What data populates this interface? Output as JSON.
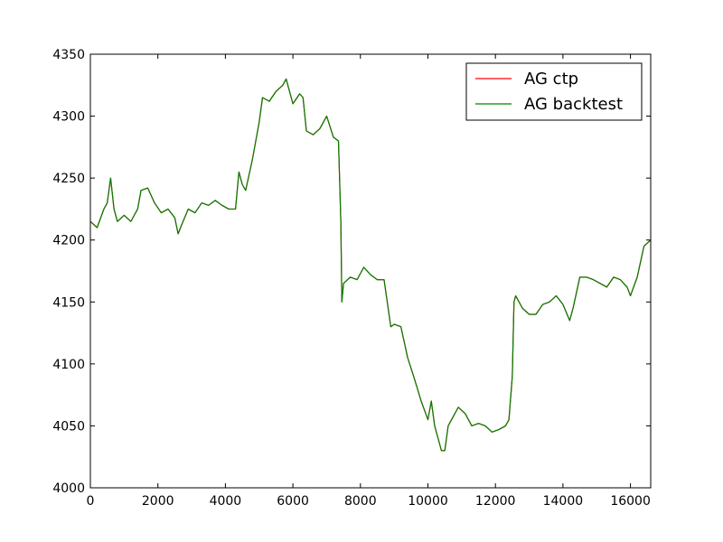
{
  "chart_data": {
    "type": "line",
    "title": "",
    "xlabel": "",
    "ylabel": "",
    "xlim": [
      0,
      16600
    ],
    "ylim": [
      4000,
      4350
    ],
    "xticks": [
      "0",
      "2000",
      "4000",
      "6000",
      "8000",
      "10000",
      "12000",
      "14000",
      "16000"
    ],
    "yticks": [
      "4000",
      "4050",
      "4100",
      "4150",
      "4200",
      "4250",
      "4300",
      "4350"
    ],
    "grid": false,
    "legend_position": "top-right",
    "series": [
      {
        "name": "AG ctp",
        "color": "#ff0000",
        "x": [
          0,
          200,
          400,
          500,
          600,
          700,
          800,
          1000,
          1200,
          1400,
          1500,
          1700,
          1900,
          2100,
          2300,
          2500,
          2600,
          2700,
          2900,
          3100,
          3300,
          3500,
          3700,
          3900,
          4100,
          4300,
          4400,
          4500,
          4600,
          4800,
          5000,
          5100,
          5300,
          5500,
          5700,
          5800,
          6000,
          6200,
          6300,
          6400,
          6600,
          6800,
          7000,
          7200,
          7350,
          7420,
          7450,
          7500,
          7700,
          7900,
          8100,
          8300,
          8500,
          8700,
          8900,
          9000,
          9200,
          9400,
          9600,
          9800,
          10000,
          10100,
          10200,
          10300,
          10400,
          10500,
          10600,
          10700,
          10900,
          11100,
          11300,
          11500,
          11700,
          11900,
          12100,
          12300,
          12400,
          12500,
          12550,
          12600,
          12800,
          13000,
          13200,
          13400,
          13600,
          13800,
          14000,
          14200,
          14300,
          14500,
          14700,
          14900,
          15100,
          15300,
          15500,
          15700,
          15900,
          16000,
          16200,
          16400,
          16600
        ],
        "y": [
          4215,
          4210,
          4225,
          4230,
          4250,
          4225,
          4215,
          4220,
          4215,
          4225,
          4240,
          4242,
          4230,
          4222,
          4225,
          4218,
          4205,
          4212,
          4225,
          4222,
          4230,
          4228,
          4232,
          4228,
          4225,
          4225,
          4255,
          4245,
          4240,
          4265,
          4295,
          4315,
          4312,
          4320,
          4325,
          4330,
          4310,
          4318,
          4315,
          4288,
          4285,
          4290,
          4300,
          4283,
          4280,
          4215,
          4150,
          4165,
          4170,
          4168,
          4178,
          4172,
          4168,
          4168,
          4130,
          4132,
          4130,
          4105,
          4088,
          4070,
          4055,
          4070,
          4050,
          4040,
          4030,
          4030,
          4050,
          4055,
          4065,
          4060,
          4050,
          4052,
          4050,
          4045,
          4047,
          4050,
          4055,
          4090,
          4150,
          4155,
          4145,
          4140,
          4140,
          4148,
          4150,
          4155,
          4148,
          4135,
          4145,
          4170,
          4170,
          4168,
          4165,
          4162,
          4170,
          4168,
          4162,
          4155,
          4170,
          4195,
          4200
        ]
      },
      {
        "name": "AG backtest",
        "color": "#008000",
        "x": [
          0,
          200,
          400,
          500,
          600,
          700,
          800,
          1000,
          1200,
          1400,
          1500,
          1700,
          1900,
          2100,
          2300,
          2500,
          2600,
          2700,
          2900,
          3100,
          3300,
          3500,
          3700,
          3900,
          4100,
          4300,
          4400,
          4500,
          4600,
          4800,
          5000,
          5100,
          5300,
          5500,
          5700,
          5800,
          6000,
          6200,
          6300,
          6400,
          6600,
          6800,
          7000,
          7200,
          7350,
          7420,
          7450,
          7500,
          7700,
          7900,
          8100,
          8300,
          8500,
          8700,
          8900,
          9000,
          9200,
          9400,
          9600,
          9800,
          10000,
          10100,
          10200,
          10300,
          10400,
          10500,
          10600,
          10700,
          10900,
          11100,
          11300,
          11500,
          11700,
          11900,
          12100,
          12300,
          12400,
          12500,
          12550,
          12600,
          12800,
          13000,
          13200,
          13400,
          13600,
          13800,
          14000,
          14200,
          14300,
          14500,
          14700,
          14900,
          15100,
          15300,
          15500,
          15700,
          15900,
          16000,
          16200,
          16400,
          16600
        ],
        "y": [
          4215,
          4210,
          4225,
          4230,
          4250,
          4225,
          4215,
          4220,
          4215,
          4225,
          4240,
          4242,
          4230,
          4222,
          4225,
          4218,
          4205,
          4212,
          4225,
          4222,
          4230,
          4228,
          4232,
          4228,
          4225,
          4225,
          4255,
          4245,
          4240,
          4265,
          4295,
          4315,
          4312,
          4320,
          4325,
          4330,
          4310,
          4318,
          4315,
          4288,
          4285,
          4290,
          4300,
          4283,
          4280,
          4215,
          4150,
          4165,
          4170,
          4168,
          4178,
          4172,
          4168,
          4168,
          4130,
          4132,
          4130,
          4105,
          4088,
          4070,
          4055,
          4070,
          4050,
          4040,
          4030,
          4030,
          4050,
          4055,
          4065,
          4060,
          4050,
          4052,
          4050,
          4045,
          4047,
          4050,
          4055,
          4090,
          4150,
          4155,
          4145,
          4140,
          4140,
          4148,
          4150,
          4155,
          4148,
          4135,
          4145,
          4170,
          4170,
          4168,
          4165,
          4162,
          4170,
          4168,
          4162,
          4155,
          4170,
          4195,
          4200
        ]
      }
    ]
  }
}
